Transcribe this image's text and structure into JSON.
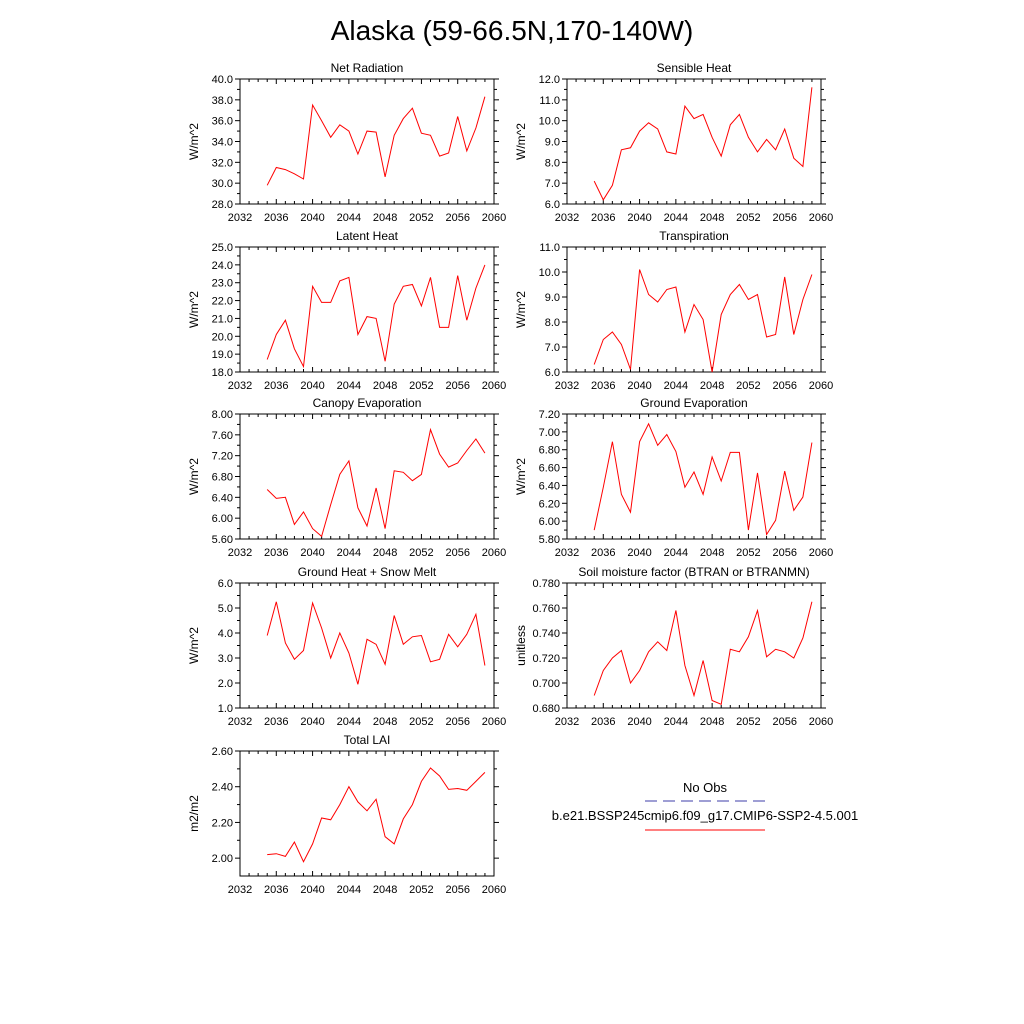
{
  "figure": {
    "title": "Alaska (59-66.5N,170-140W)",
    "legend": {
      "obs_label": "No Obs",
      "obs_color": "#3d3da8",
      "model_label": "b.e21.BSSP245cmip6.f09_g17.CMIP6-SSP2-4.5.001",
      "model_color": "#ff0000"
    }
  },
  "chart_data": [
    {
      "type": "line",
      "title": "Net Radiation",
      "ylabel": "W/m^2",
      "xlabel": "",
      "xlim": [
        2032,
        2060
      ],
      "ylim": [
        28.0,
        40.0
      ],
      "xticks": [
        "2032",
        "2036",
        "2040",
        "2044",
        "2048",
        "2052",
        "2056",
        "2060"
      ],
      "yticks": [
        "28.0",
        "30.0",
        "32.0",
        "34.0",
        "36.0",
        "38.0",
        "40.0"
      ],
      "x": [
        2035,
        2036,
        2037,
        2038,
        2039,
        2040,
        2041,
        2042,
        2043,
        2044,
        2045,
        2046,
        2047,
        2048,
        2049,
        2050,
        2051,
        2052,
        2053,
        2054,
        2055,
        2056,
        2057,
        2058,
        2059
      ],
      "values": [
        29.8,
        31.5,
        31.3,
        30.9,
        30.4,
        37.5,
        36.0,
        34.4,
        35.6,
        35.0,
        32.8,
        35.0,
        34.9,
        30.6,
        34.6,
        36.2,
        37.2,
        34.8,
        34.6,
        32.6,
        32.9,
        36.4,
        33.1,
        35.3,
        38.3
      ],
      "color": "#ff0000"
    },
    {
      "type": "line",
      "title": "Sensible Heat",
      "ylabel": "W/m^2",
      "xlabel": "",
      "xlim": [
        2032,
        2060
      ],
      "ylim": [
        6.0,
        12.0
      ],
      "xticks": [
        "2032",
        "2036",
        "2040",
        "2044",
        "2048",
        "2052",
        "2056",
        "2060"
      ],
      "yticks": [
        "6.0",
        "7.0",
        "8.0",
        "9.0",
        "10.0",
        "11.0",
        "12.0"
      ],
      "x": [
        2035,
        2036,
        2037,
        2038,
        2039,
        2040,
        2041,
        2042,
        2043,
        2044,
        2045,
        2046,
        2047,
        2048,
        2049,
        2050,
        2051,
        2052,
        2053,
        2054,
        2055,
        2056,
        2057,
        2058,
        2059
      ],
      "values": [
        7.1,
        6.2,
        6.9,
        8.6,
        8.7,
        9.5,
        9.9,
        9.6,
        8.5,
        8.4,
        10.7,
        10.1,
        10.3,
        9.2,
        8.3,
        9.8,
        10.3,
        9.2,
        8.5,
        9.1,
        8.6,
        9.6,
        8.2,
        7.8,
        11.6
      ],
      "color": "#ff0000"
    },
    {
      "type": "line",
      "title": "Latent Heat",
      "ylabel": "W/m^2",
      "xlabel": "",
      "xlim": [
        2032,
        2060
      ],
      "ylim": [
        18.0,
        25.0
      ],
      "xticks": [
        "2032",
        "2036",
        "2040",
        "2044",
        "2048",
        "2052",
        "2056",
        "2060"
      ],
      "yticks": [
        "18.0",
        "19.0",
        "20.0",
        "21.0",
        "22.0",
        "23.0",
        "24.0",
        "25.0"
      ],
      "x": [
        2035,
        2036,
        2037,
        2038,
        2039,
        2040,
        2041,
        2042,
        2043,
        2044,
        2045,
        2046,
        2047,
        2048,
        2049,
        2050,
        2051,
        2052,
        2053,
        2054,
        2055,
        2056,
        2057,
        2058,
        2059
      ],
      "values": [
        18.7,
        20.1,
        20.9,
        19.3,
        18.3,
        22.8,
        21.9,
        21.9,
        23.1,
        23.3,
        20.1,
        21.1,
        21.0,
        18.6,
        21.8,
        22.8,
        22.9,
        21.7,
        23.3,
        20.5,
        20.5,
        23.4,
        20.9,
        22.7,
        24.0
      ],
      "color": "#ff0000"
    },
    {
      "type": "line",
      "title": "Transpiration",
      "ylabel": "W/m^2",
      "xlabel": "",
      "xlim": [
        2032,
        2060
      ],
      "ylim": [
        6.0,
        11.0
      ],
      "xticks": [
        "2032",
        "2036",
        "2040",
        "2044",
        "2048",
        "2052",
        "2056",
        "2060"
      ],
      "yticks": [
        "6.0",
        "7.0",
        "8.0",
        "9.0",
        "10.0",
        "11.0"
      ],
      "x": [
        2035,
        2036,
        2037,
        2038,
        2039,
        2040,
        2041,
        2042,
        2043,
        2044,
        2045,
        2046,
        2047,
        2048,
        2049,
        2050,
        2051,
        2052,
        2053,
        2054,
        2055,
        2056,
        2057,
        2058,
        2059
      ],
      "values": [
        6.3,
        7.3,
        7.6,
        7.1,
        6.1,
        10.1,
        9.1,
        8.8,
        9.3,
        9.4,
        7.6,
        8.7,
        8.1,
        6.0,
        8.3,
        9.1,
        9.5,
        8.9,
        9.1,
        7.4,
        7.5,
        9.8,
        7.5,
        8.9,
        9.9
      ],
      "color": "#ff0000"
    },
    {
      "type": "line",
      "title": "Canopy Evaporation",
      "ylabel": "W/m^2",
      "xlabel": "",
      "xlim": [
        2032,
        2060
      ],
      "ylim": [
        5.6,
        8.0
      ],
      "xticks": [
        "2032",
        "2036",
        "2040",
        "2044",
        "2048",
        "2052",
        "2056",
        "2060"
      ],
      "yticks": [
        "5.60",
        "6.00",
        "6.40",
        "6.80",
        "7.20",
        "7.60",
        "8.00"
      ],
      "x": [
        2035,
        2036,
        2037,
        2038,
        2039,
        2040,
        2041,
        2042,
        2043,
        2044,
        2045,
        2046,
        2047,
        2048,
        2049,
        2050,
        2051,
        2052,
        2053,
        2054,
        2055,
        2056,
        2057,
        2058,
        2059
      ],
      "values": [
        6.55,
        6.38,
        6.4,
        5.88,
        6.12,
        5.8,
        5.65,
        6.26,
        6.84,
        7.1,
        6.2,
        5.85,
        6.58,
        5.8,
        6.91,
        6.88,
        6.72,
        6.84,
        7.7,
        7.23,
        6.98,
        7.06,
        7.3,
        7.52,
        7.25
      ],
      "color": "#ff0000"
    },
    {
      "type": "line",
      "title": "Ground Evaporation",
      "ylabel": "W/m^2",
      "xlabel": "",
      "xlim": [
        2032,
        2060
      ],
      "ylim": [
        5.8,
        7.2
      ],
      "xticks": [
        "2032",
        "2036",
        "2040",
        "2044",
        "2048",
        "2052",
        "2056",
        "2060"
      ],
      "yticks": [
        "5.80",
        "6.00",
        "6.20",
        "6.40",
        "6.60",
        "6.80",
        "7.00",
        "7.20"
      ],
      "x": [
        2035,
        2036,
        2037,
        2038,
        2039,
        2040,
        2041,
        2042,
        2043,
        2044,
        2045,
        2046,
        2047,
        2048,
        2049,
        2050,
        2051,
        2052,
        2053,
        2054,
        2055,
        2056,
        2057,
        2058,
        2059
      ],
      "values": [
        5.9,
        6.38,
        6.89,
        6.3,
        6.1,
        6.89,
        7.09,
        6.85,
        6.97,
        6.78,
        6.38,
        6.55,
        6.3,
        6.72,
        6.45,
        6.77,
        6.77,
        5.9,
        6.54,
        5.85,
        6.01,
        6.56,
        6.12,
        6.27,
        6.88
      ],
      "color": "#ff0000"
    },
    {
      "type": "line",
      "title": "Ground Heat + Snow Melt",
      "ylabel": "W/m^2",
      "xlabel": "",
      "xlim": [
        2032,
        2060
      ],
      "ylim": [
        1.0,
        6.0
      ],
      "xticks": [
        "2032",
        "2036",
        "2040",
        "2044",
        "2048",
        "2052",
        "2056",
        "2060"
      ],
      "yticks": [
        "1.0",
        "2.0",
        "3.0",
        "4.0",
        "5.0",
        "6.0"
      ],
      "x": [
        2035,
        2036,
        2037,
        2038,
        2039,
        2040,
        2041,
        2042,
        2043,
        2044,
        2045,
        2046,
        2047,
        2048,
        2049,
        2050,
        2051,
        2052,
        2053,
        2054,
        2055,
        2056,
        2057,
        2058,
        2059
      ],
      "values": [
        3.9,
        5.25,
        3.6,
        2.95,
        3.3,
        5.2,
        4.2,
        3.0,
        4.0,
        3.2,
        1.95,
        3.75,
        3.55,
        2.75,
        4.7,
        3.55,
        3.85,
        3.9,
        2.85,
        2.95,
        3.95,
        3.45,
        3.95,
        4.75,
        2.7
      ],
      "color": "#ff0000"
    },
    {
      "type": "line",
      "title": "Soil moisture factor (BTRAN or BTRANMN)",
      "ylabel": "unitless",
      "xlabel": "",
      "xlim": [
        2032,
        2060
      ],
      "ylim": [
        0.68,
        0.78
      ],
      "xticks": [
        "2032",
        "2036",
        "2040",
        "2044",
        "2048",
        "2052",
        "2056",
        "2060"
      ],
      "yticks": [
        "0.680",
        "0.700",
        "0.720",
        "0.740",
        "0.760",
        "0.780"
      ],
      "x": [
        2035,
        2036,
        2037,
        2038,
        2039,
        2040,
        2041,
        2042,
        2043,
        2044,
        2045,
        2046,
        2047,
        2048,
        2049,
        2050,
        2051,
        2052,
        2053,
        2054,
        2055,
        2056,
        2057,
        2058,
        2059
      ],
      "values": [
        0.69,
        0.71,
        0.72,
        0.726,
        0.7,
        0.71,
        0.725,
        0.733,
        0.726,
        0.758,
        0.714,
        0.69,
        0.718,
        0.686,
        0.683,
        0.727,
        0.725,
        0.737,
        0.758,
        0.721,
        0.727,
        0.725,
        0.72,
        0.736,
        0.765
      ],
      "color": "#ff0000"
    },
    {
      "type": "line",
      "title": "Total LAI",
      "ylabel": "m2/m2",
      "xlabel": "",
      "xlim": [
        2032,
        2060
      ],
      "ylim": [
        1.9,
        2.6
      ],
      "xticks": [
        "2032",
        "2036",
        "2040",
        "2044",
        "2048",
        "2052",
        "2056",
        "2060"
      ],
      "yticks": [
        "2.00",
        "2.20",
        "2.40",
        "2.60"
      ],
      "x": [
        2035,
        2036,
        2037,
        2038,
        2039,
        2040,
        2041,
        2042,
        2043,
        2044,
        2045,
        2046,
        2047,
        2048,
        2049,
        2050,
        2051,
        2052,
        2053,
        2054,
        2055,
        2056,
        2057,
        2058,
        2059
      ],
      "values": [
        2.02,
        2.025,
        2.01,
        2.09,
        1.98,
        2.08,
        2.225,
        2.215,
        2.3,
        2.4,
        2.315,
        2.265,
        2.33,
        2.12,
        2.08,
        2.22,
        2.3,
        2.43,
        2.505,
        2.46,
        2.385,
        2.39,
        2.38,
        2.43,
        2.48
      ],
      "color": "#ff0000"
    }
  ]
}
